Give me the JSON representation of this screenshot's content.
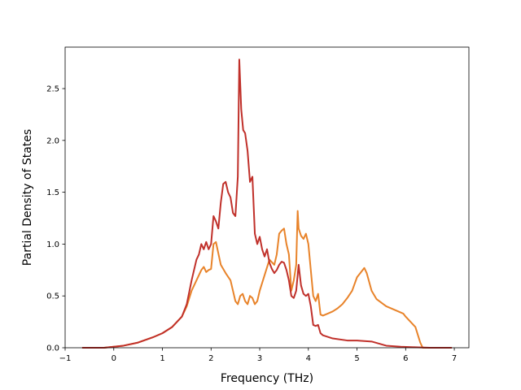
{
  "chart_data": {
    "type": "line",
    "xlabel": "Frequency (THz)",
    "ylabel": "Partial Density of States",
    "xlim": [
      -1,
      7.3
    ],
    "ylim": [
      0,
      2.9
    ],
    "xticks": [
      -1,
      0,
      1,
      2,
      3,
      4,
      5,
      6,
      7
    ],
    "yticks": [
      0.0,
      0.5,
      1.0,
      1.5,
      2.0,
      2.5
    ],
    "xtick_labels": [
      "−1",
      "0",
      "1",
      "2",
      "3",
      "4",
      "5",
      "6",
      "7"
    ],
    "ytick_labels": [
      "0.0",
      "0.5",
      "1.0",
      "1.5",
      "2.0",
      "2.5"
    ],
    "grid": false,
    "series": [
      {
        "color": "#e8832a",
        "x": [
          -0.65,
          -0.2,
          0,
          0.2,
          0.5,
          0.8,
          1.0,
          1.2,
          1.4,
          1.5,
          1.6,
          1.7,
          1.8,
          1.85,
          1.9,
          1.95,
          2.0,
          2.05,
          2.1,
          2.2,
          2.3,
          2.4,
          2.45,
          2.5,
          2.55,
          2.6,
          2.65,
          2.7,
          2.75,
          2.8,
          2.85,
          2.9,
          2.95,
          3.0,
          3.1,
          3.2,
          3.3,
          3.35,
          3.4,
          3.45,
          3.5,
          3.55,
          3.6,
          3.65,
          3.7,
          3.75,
          3.78,
          3.8,
          3.85,
          3.9,
          3.95,
          4.0,
          4.05,
          4.1,
          4.15,
          4.2,
          4.25,
          4.3,
          4.4,
          4.5,
          4.6,
          4.7,
          4.8,
          4.9,
          5.0,
          5.1,
          5.15,
          5.2,
          5.3,
          5.4,
          5.6,
          5.8,
          5.95,
          6.0,
          6.1,
          6.2,
          6.3,
          6.35,
          6.6,
          6.95
        ],
        "values": [
          0,
          0,
          0.01,
          0.02,
          0.05,
          0.1,
          0.14,
          0.2,
          0.3,
          0.4,
          0.55,
          0.65,
          0.75,
          0.78,
          0.73,
          0.75,
          0.76,
          1.0,
          1.02,
          0.8,
          0.72,
          0.65,
          0.55,
          0.45,
          0.42,
          0.5,
          0.52,
          0.45,
          0.42,
          0.5,
          0.48,
          0.42,
          0.45,
          0.55,
          0.7,
          0.85,
          0.8,
          0.9,
          1.1,
          1.13,
          1.15,
          1.0,
          0.9,
          0.55,
          0.65,
          0.8,
          1.32,
          1.15,
          1.08,
          1.05,
          1.1,
          1.0,
          0.75,
          0.5,
          0.45,
          0.52,
          0.32,
          0.31,
          0.33,
          0.35,
          0.38,
          0.42,
          0.48,
          0.55,
          0.68,
          0.74,
          0.77,
          0.72,
          0.55,
          0.47,
          0.4,
          0.36,
          0.33,
          0.3,
          0.25,
          0.2,
          0.05,
          0,
          0,
          0
        ]
      },
      {
        "color": "#c0302a",
        "x": [
          -0.65,
          -0.2,
          0,
          0.2,
          0.5,
          0.8,
          1.0,
          1.2,
          1.4,
          1.5,
          1.6,
          1.7,
          1.75,
          1.8,
          1.85,
          1.9,
          1.95,
          2.0,
          2.05,
          2.1,
          2.15,
          2.2,
          2.25,
          2.3,
          2.35,
          2.4,
          2.45,
          2.5,
          2.55,
          2.58,
          2.62,
          2.66,
          2.7,
          2.75,
          2.8,
          2.85,
          2.9,
          2.95,
          3.0,
          3.05,
          3.1,
          3.15,
          3.2,
          3.25,
          3.3,
          3.35,
          3.4,
          3.45,
          3.5,
          3.55,
          3.6,
          3.65,
          3.7,
          3.75,
          3.8,
          3.85,
          3.9,
          3.95,
          4.0,
          4.05,
          4.1,
          4.15,
          4.2,
          4.25,
          4.3,
          4.5,
          4.8,
          5.0,
          5.3,
          5.6,
          5.9,
          6.2,
          6.5,
          6.95
        ],
        "values": [
          0,
          0,
          0.01,
          0.02,
          0.05,
          0.1,
          0.14,
          0.2,
          0.3,
          0.42,
          0.65,
          0.85,
          0.9,
          1.0,
          0.95,
          1.02,
          0.95,
          1.0,
          1.27,
          1.22,
          1.15,
          1.4,
          1.58,
          1.6,
          1.5,
          1.45,
          1.3,
          1.27,
          1.65,
          2.78,
          2.3,
          2.1,
          2.07,
          1.9,
          1.6,
          1.65,
          1.1,
          1.0,
          1.07,
          0.95,
          0.88,
          0.95,
          0.82,
          0.76,
          0.72,
          0.75,
          0.8,
          0.83,
          0.82,
          0.75,
          0.65,
          0.5,
          0.48,
          0.55,
          0.8,
          0.6,
          0.52,
          0.5,
          0.52,
          0.4,
          0.22,
          0.21,
          0.22,
          0.14,
          0.12,
          0.09,
          0.07,
          0.07,
          0.06,
          0.02,
          0.01,
          0.005,
          0,
          0
        ]
      }
    ]
  }
}
